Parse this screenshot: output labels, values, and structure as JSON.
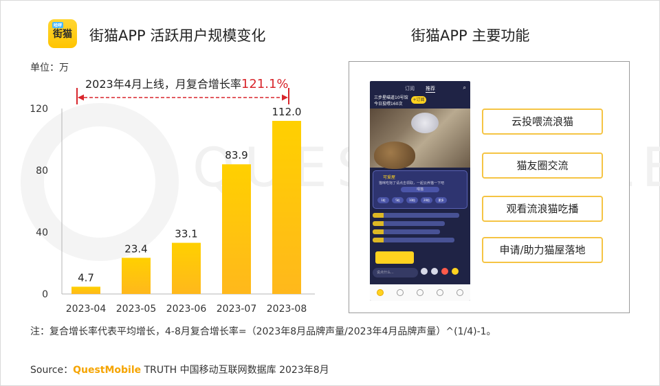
{
  "header": {
    "logo_text": "街猫",
    "logo_badge": "哈啰",
    "chart_title": "街猫APP 活跃用户规模变化",
    "unit": "单位：万",
    "right_title": "街猫APP 主要功能"
  },
  "annotation": {
    "text": "2023年4月上线，月复合增长率",
    "highlight": "121.1%"
  },
  "chart_data": {
    "type": "bar",
    "categories": [
      "2023-04",
      "2023-05",
      "2023-06",
      "2023-07",
      "2023-08"
    ],
    "values": [
      4.7,
      23.4,
      33.1,
      83.9,
      112.0
    ],
    "value_labels": [
      "4.7",
      "23.4",
      "33.1",
      "83.9",
      "112.0"
    ],
    "ylim": [
      0,
      120
    ],
    "yticks": [
      0,
      40,
      80,
      120
    ],
    "ylabel": "单位：万",
    "xlabel": "",
    "title": "街猫APP 活跃用户规模变化",
    "bar_color_top": "#ffd000",
    "bar_color_bottom": "#ffb81c",
    "grid": false
  },
  "features": {
    "items": [
      "云投喂流浪猫",
      "猫友圈交流",
      "观看流浪猫吃播",
      "申请/助力猫屋落地"
    ],
    "border_color": "#f5c443"
  },
  "phone": {
    "tabs": [
      "订阅",
      "推荐"
    ],
    "room_name": "三步星喵道10号馆",
    "room_sub": "今日投喂160次",
    "follow": "+订阅",
    "card_title": "可爱屋",
    "card_sub": "猫咪吃饱了请点击领取，一起云养猫一下吧",
    "card_button": "喂猫",
    "chips": [
      "1粒",
      "5粒",
      "10粒",
      "20粒",
      "更多"
    ],
    "input_placeholder": "说点什么..."
  },
  "footer": {
    "note": "注：复合增长率代表平均增长，4-8月复合增长率=（2023年8月品牌声量/2023年4月品牌声量）^(1/4)-1。",
    "source_prefix": "Source：",
    "source_brand": "QuestMobile",
    "source_rest": " TRUTH 中国移动互联网数据库 2023年8月"
  },
  "colors": {
    "accent_red": "#d8252b",
    "bar_yellow": "#ffc400",
    "brand_orange": "#f5a400"
  }
}
